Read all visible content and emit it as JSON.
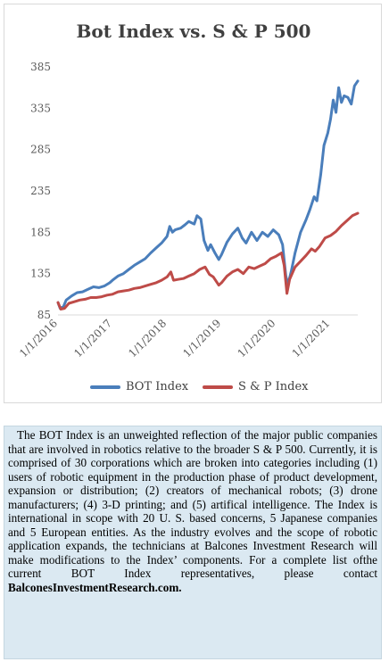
{
  "colors": {
    "bot": "#4a7ebb",
    "sp": "#be4b48",
    "text": "#404040",
    "caption_bg": "#dbe9f2"
  },
  "chart_data": {
    "type": "line",
    "title": "Bot Index vs. S & P 500",
    "ylim": [
      85,
      385
    ],
    "yticks": [
      "385",
      "335",
      "285",
      "235",
      "185",
      "135",
      "85"
    ],
    "ytick_values": [
      385,
      335,
      285,
      235,
      185,
      135,
      85
    ],
    "xtick_labels": [
      "1/1/2016",
      "1/1/2017",
      "1/1/2018",
      "1/1/2019",
      "1/1/2020",
      "1/1/2021"
    ],
    "xtick_years": [
      2016,
      2017,
      2018,
      2019,
      2020,
      2021
    ],
    "xrange": [
      2016.0,
      2021.5
    ],
    "legend_placement": "bottom",
    "grid": false,
    "series": [
      {
        "name": "BOT Index",
        "points": [
          [
            2016.0,
            100
          ],
          [
            2016.04,
            93
          ],
          [
            2016.1,
            95
          ],
          [
            2016.15,
            103
          ],
          [
            2016.25,
            108
          ],
          [
            2016.35,
            112
          ],
          [
            2016.45,
            113
          ],
          [
            2016.55,
            116
          ],
          [
            2016.65,
            119
          ],
          [
            2016.75,
            118
          ],
          [
            2016.85,
            120
          ],
          [
            2016.95,
            124
          ],
          [
            2017.0,
            127
          ],
          [
            2017.1,
            132
          ],
          [
            2017.2,
            135
          ],
          [
            2017.3,
            140
          ],
          [
            2017.4,
            145
          ],
          [
            2017.5,
            149
          ],
          [
            2017.6,
            153
          ],
          [
            2017.7,
            160
          ],
          [
            2017.8,
            166
          ],
          [
            2017.9,
            172
          ],
          [
            2018.0,
            180
          ],
          [
            2018.05,
            192
          ],
          [
            2018.1,
            185
          ],
          [
            2018.15,
            188
          ],
          [
            2018.25,
            190
          ],
          [
            2018.33,
            194
          ],
          [
            2018.4,
            198
          ],
          [
            2018.5,
            195
          ],
          [
            2018.55,
            205
          ],
          [
            2018.62,
            201
          ],
          [
            2018.68,
            175
          ],
          [
            2018.75,
            163
          ],
          [
            2018.8,
            170
          ],
          [
            2018.88,
            160
          ],
          [
            2018.95,
            152
          ],
          [
            2019.0,
            158
          ],
          [
            2019.1,
            173
          ],
          [
            2019.2,
            183
          ],
          [
            2019.3,
            190
          ],
          [
            2019.38,
            178
          ],
          [
            2019.45,
            172
          ],
          [
            2019.55,
            185
          ],
          [
            2019.65,
            175
          ],
          [
            2019.75,
            185
          ],
          [
            2019.85,
            180
          ],
          [
            2019.95,
            188
          ],
          [
            2020.05,
            182
          ],
          [
            2020.12,
            170
          ],
          [
            2020.18,
            132
          ],
          [
            2020.22,
            122
          ],
          [
            2020.28,
            138
          ],
          [
            2020.35,
            160
          ],
          [
            2020.45,
            185
          ],
          [
            2020.55,
            200
          ],
          [
            2020.62,
            212
          ],
          [
            2020.7,
            228
          ],
          [
            2020.75,
            223
          ],
          [
            2020.82,
            255
          ],
          [
            2020.88,
            290
          ],
          [
            2020.95,
            305
          ],
          [
            2021.0,
            322
          ],
          [
            2021.05,
            345
          ],
          [
            2021.1,
            330
          ],
          [
            2021.15,
            360
          ],
          [
            2021.2,
            342
          ],
          [
            2021.25,
            350
          ],
          [
            2021.32,
            348
          ],
          [
            2021.38,
            340
          ],
          [
            2021.44,
            362
          ],
          [
            2021.5,
            368
          ]
        ]
      },
      {
        "name": "S & P Index",
        "points": [
          [
            2016.0,
            100
          ],
          [
            2016.05,
            92
          ],
          [
            2016.12,
            93
          ],
          [
            2016.2,
            99
          ],
          [
            2016.3,
            101
          ],
          [
            2016.4,
            103
          ],
          [
            2016.5,
            104
          ],
          [
            2016.6,
            106
          ],
          [
            2016.7,
            106
          ],
          [
            2016.8,
            107
          ],
          [
            2016.9,
            109
          ],
          [
            2017.0,
            110
          ],
          [
            2017.1,
            113
          ],
          [
            2017.2,
            114
          ],
          [
            2017.3,
            115
          ],
          [
            2017.4,
            117
          ],
          [
            2017.5,
            118
          ],
          [
            2017.6,
            120
          ],
          [
            2017.7,
            122
          ],
          [
            2017.8,
            124
          ],
          [
            2017.9,
            127
          ],
          [
            2018.0,
            131
          ],
          [
            2018.07,
            137
          ],
          [
            2018.12,
            127
          ],
          [
            2018.2,
            128
          ],
          [
            2018.3,
            129
          ],
          [
            2018.4,
            132
          ],
          [
            2018.5,
            135
          ],
          [
            2018.6,
            140
          ],
          [
            2018.7,
            143
          ],
          [
            2018.78,
            134
          ],
          [
            2018.85,
            131
          ],
          [
            2018.95,
            121
          ],
          [
            2019.0,
            124
          ],
          [
            2019.1,
            132
          ],
          [
            2019.2,
            137
          ],
          [
            2019.3,
            140
          ],
          [
            2019.4,
            135
          ],
          [
            2019.5,
            143
          ],
          [
            2019.6,
            141
          ],
          [
            2019.7,
            144
          ],
          [
            2019.8,
            147
          ],
          [
            2019.9,
            153
          ],
          [
            2020.0,
            156
          ],
          [
            2020.1,
            160
          ],
          [
            2020.15,
            145
          ],
          [
            2020.2,
            111
          ],
          [
            2020.25,
            128
          ],
          [
            2020.35,
            143
          ],
          [
            2020.45,
            150
          ],
          [
            2020.55,
            157
          ],
          [
            2020.65,
            165
          ],
          [
            2020.72,
            162
          ],
          [
            2020.8,
            168
          ],
          [
            2020.9,
            178
          ],
          [
            2021.0,
            181
          ],
          [
            2021.1,
            186
          ],
          [
            2021.2,
            193
          ],
          [
            2021.3,
            199
          ],
          [
            2021.4,
            205
          ],
          [
            2021.5,
            208
          ]
        ]
      }
    ]
  },
  "caption": {
    "body": "The BOT Index is an unweighted reflection of the major public companies that are involved in robotics relative to the broader S & P 500. Currently, it is comprised of 30 corporations which are broken into categories including (1) users of robotic equipment in the production phase of product development, expansion or distribution; (2) creators of mechanical robots; (3) drone manufacturers; (4) 3-D printing; and (5) artifical intelligence. The Index is international in scope with 20 U. S. based concerns, 5 Japanese companies and 5 European entities. As the industry evolves and the scope of robotic application expands, the technicians at Balcones Investment Research will make modifications to the Index’ components. For a  complete list ofthe current BOT Index representatives, please contact",
    "link": "BalconesInvestmentResearch.com."
  }
}
